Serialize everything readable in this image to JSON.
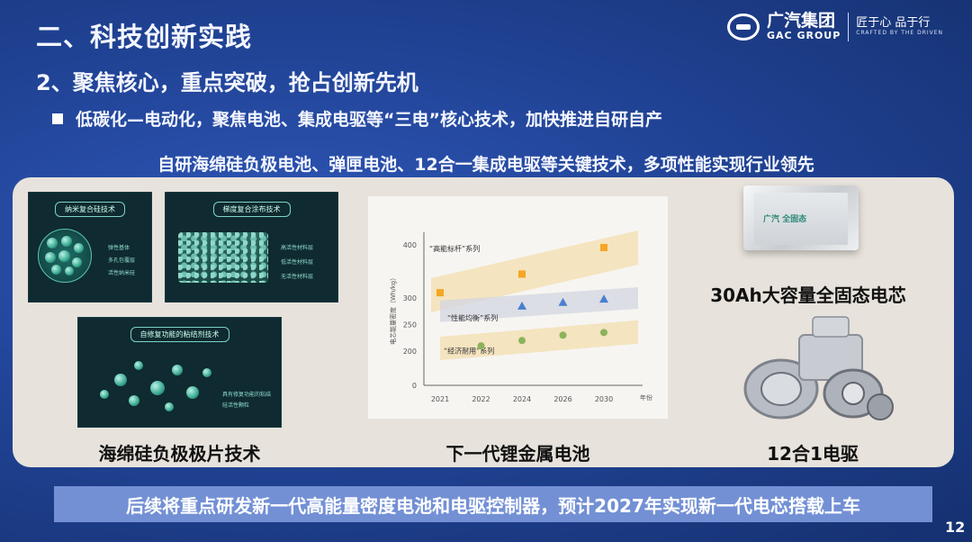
{
  "header": {
    "title": "二、科技创新实践",
    "section": "2、聚焦核心，重点突破，抢占创新先机",
    "bullet": "低碳化—电动化，聚焦电池、集成电驱等“三电”核心技术，加快推进自研自产",
    "subtitle": "自研海绵硅负极电池、弹匣电池、12合一集成电驱等关键技术，多项性能实现行业领先"
  },
  "logo": {
    "cn": "广汽集团",
    "en": "GAC GROUP",
    "slogan_cn": "匠于心 品于行",
    "slogan_en": "CRAFTED BY THE DRIVEN"
  },
  "cards": {
    "card1": {
      "title": "纳米复合硅技术",
      "labels": [
        "弹性基体",
        "多孔包覆层",
        "活性纳米硅"
      ]
    },
    "card2": {
      "title": "梯度复合涂布技术",
      "labels": [
        "高活性材料层",
        "低活性材料层",
        "无活性材料层"
      ]
    },
    "card3": {
      "title": "自修复功能的粘结剂技术",
      "labels": [
        "具有修复功能的粘结",
        "硅活性颗粒"
      ]
    }
  },
  "captions": {
    "left": "海绵硅负极极片技术",
    "chart": "下一代锂金属电池",
    "battery": "30Ah大容量全固态电芯",
    "drive": "12合1电驱"
  },
  "battery_logo_text": "广汽 全固态",
  "bottom_text": "后续将重点研发新一代高能量密度电池和电驱控制器，预计2027年实现新一代电芯搭载上车",
  "page_number": "12",
  "colors": {
    "accent_blue": "#2a4fae",
    "panel_bg": "#e7e2db",
    "band": "#f3deae",
    "band_gray": "#d3d6e2",
    "orange": "#f5a623",
    "blue_marker": "#4a7fd0",
    "green": "#8bb35a"
  },
  "chart_data": {
    "type": "scatter",
    "ylabel": "电芯能量密度（Wh/kg）",
    "xlabel": "年份",
    "x_ticks": [
      "2021",
      "2022",
      "2024",
      "2026",
      "2030"
    ],
    "y_ticks": [
      0,
      200,
      250,
      300,
      400
    ],
    "series": [
      {
        "name": "“高能标杆”系列",
        "marker": "square",
        "color": "#f5a623",
        "points": [
          {
            "x": "2021",
            "y": 310
          },
          {
            "x": "2024",
            "y": 345
          },
          {
            "x": "2030",
            "y": 395
          }
        ]
      },
      {
        "name": "“性能均衡”系列",
        "marker": "triangle",
        "color": "#4a7fd0",
        "points": [
          {
            "x": "2024",
            "y": 285
          },
          {
            "x": "2026",
            "y": 292
          },
          {
            "x": "2030",
            "y": 298
          }
        ]
      },
      {
        "name": "“经济耐用”系列",
        "marker": "circle",
        "color": "#8bb35a",
        "points": [
          {
            "x": "2022",
            "y": 210
          },
          {
            "x": "2024",
            "y": 220
          },
          {
            "x": "2026",
            "y": 230
          },
          {
            "x": "2030",
            "y": 235
          }
        ]
      }
    ]
  }
}
